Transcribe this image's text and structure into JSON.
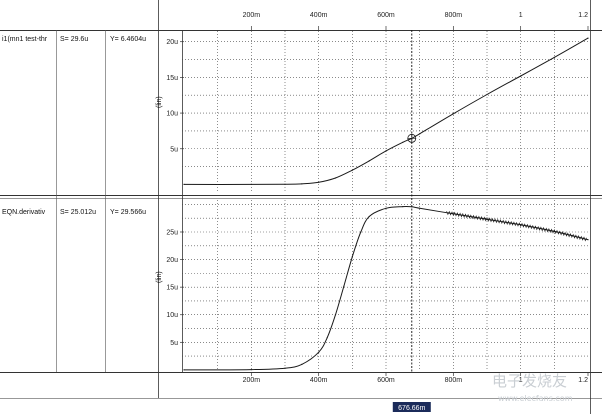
{
  "x_ticks": [
    "200m",
    "400m",
    "600m",
    "800m",
    "1",
    "1.2"
  ],
  "cursor": {
    "x_value": 0.6766,
    "x_label": "676.66m"
  },
  "panels": [
    {
      "id": "top",
      "signal_name": "i1(mn1 test-thr",
      "s_label": "S= 29.6u",
      "y_label": "Y= 6.4604u",
      "y_axis_label": "(lin)",
      "y_ticks": [
        "20u",
        "15u",
        "10u",
        "5u"
      ]
    },
    {
      "id": "bottom",
      "signal_name": "EQN.derivativ",
      "s_label": "S= 25.012u",
      "y_label": "Y= 29.566u",
      "y_axis_label": "(lin)",
      "y_ticks": [
        "25u",
        "20u",
        "15u",
        "10u",
        "5u"
      ]
    }
  ],
  "watermark": {
    "main": "电子发烧友",
    "url": "www.elecfans.com"
  },
  "chart_data": [
    {
      "type": "line",
      "title": "",
      "series": [
        {
          "name": "i1(mn1 test-thr",
          "x": [
            0.0,
            0.2,
            0.3,
            0.35,
            0.4,
            0.45,
            0.5,
            0.55,
            0.6,
            0.65,
            0.6766,
            0.7,
            0.8,
            0.9,
            1.0,
            1.1,
            1.2
          ],
          "y": [
            0.0,
            0.0,
            0.02,
            0.08,
            0.3,
            0.9,
            2.0,
            3.3,
            4.7,
            5.9,
            6.4604,
            7.1,
            9.9,
            12.6,
            15.2,
            17.8,
            20.5
          ]
        }
      ],
      "xlim": [
        0.0,
        1.2
      ],
      "ylim": [
        -1.2,
        21.5
      ],
      "grid": true
    },
    {
      "type": "line",
      "title": "",
      "series": [
        {
          "name": "EQN.derivativ",
          "x": [
            0.0,
            0.2,
            0.3,
            0.35,
            0.4,
            0.425,
            0.45,
            0.475,
            0.5,
            0.525,
            0.55,
            0.6,
            0.65,
            0.6766,
            0.7,
            0.8,
            0.9,
            1.0,
            1.1,
            1.2
          ],
          "y": [
            0.0,
            0.05,
            0.3,
            1.0,
            3.2,
            5.8,
            10.0,
            15.2,
            20.5,
            25.0,
            27.8,
            29.3,
            29.6,
            29.566,
            29.3,
            28.3,
            27.3,
            26.3,
            25.1,
            23.6
          ]
        }
      ],
      "xlim": [
        0.0,
        1.2
      ],
      "ylim": [
        -0.2,
        30.8
      ],
      "grid": true
    }
  ]
}
